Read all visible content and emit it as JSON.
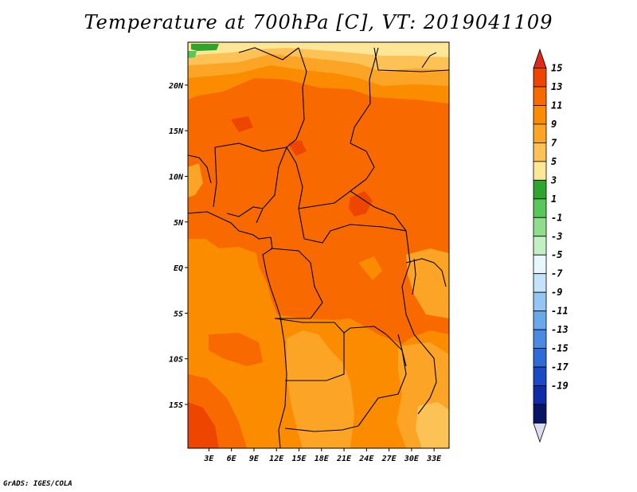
{
  "chart_data": {
    "type": "heatmap",
    "title": "Temperature at 700hPa [C], VT: 2019041109",
    "variable": "Temperature at 700hPa",
    "units": "C",
    "valid_time": "2019041109",
    "x_ticks": [
      "3E",
      "6E",
      "9E",
      "12E",
      "15E",
      "18E",
      "21E",
      "24E",
      "27E",
      "30E",
      "33E"
    ],
    "x_tick_values": [
      3,
      6,
      9,
      12,
      15,
      18,
      21,
      24,
      27,
      30,
      33
    ],
    "y_ticks": [
      "20N",
      "15N",
      "10N",
      "5N",
      "EQ",
      "5S",
      "10S",
      "15S"
    ],
    "y_tick_values": [
      20,
      15,
      10,
      5,
      0,
      -5,
      -10,
      -15
    ],
    "xlim": [
      0.2,
      35.0
    ],
    "ylim": [
      -19.8,
      24.7
    ],
    "colorbar": {
      "orientation": "vertical",
      "labels": [
        "15",
        "13",
        "11",
        "9",
        "7",
        "5",
        "3",
        "1",
        "-1",
        "-3",
        "-5",
        "-7",
        "-9",
        "-11",
        "-13",
        "-15",
        "-17",
        "-19"
      ],
      "colors": [
        "#e0281c",
        "#ee4600",
        "#f86a00",
        "#fb8c00",
        "#fba425",
        "#fcc255",
        "#fde796",
        "#2ea62e",
        "#58c658",
        "#8ede8e",
        "#c2f0c2",
        "#e7f7fc",
        "#c4e2f8",
        "#94c6f2",
        "#6aa8ec",
        "#4a8ae2",
        "#2e6ad8",
        "#1a4ac4",
        "#0e2ca8",
        "#061664",
        "#dcdcf4"
      ]
    },
    "field_regions": [
      {
        "range": "11-13",
        "area": "central Africa, Sahel, Congo basin"
      },
      {
        "range": "13-15",
        "area": "small pockets near 6N 22E and 15N 13E"
      },
      {
        "range": "9-11",
        "area": "Atlantic south of equator, southern Africa, far north"
      },
      {
        "range": "7-9",
        "area": "north edge, Angola plateau, southeast"
      },
      {
        "range": "5-7",
        "area": "northern strip near 23N"
      },
      {
        "range": "3-5",
        "area": "northern strip near 24N"
      },
      {
        "range": "1-3",
        "area": "small patches at top left"
      }
    ]
  },
  "credit": "GrADS: IGES/COLA"
}
